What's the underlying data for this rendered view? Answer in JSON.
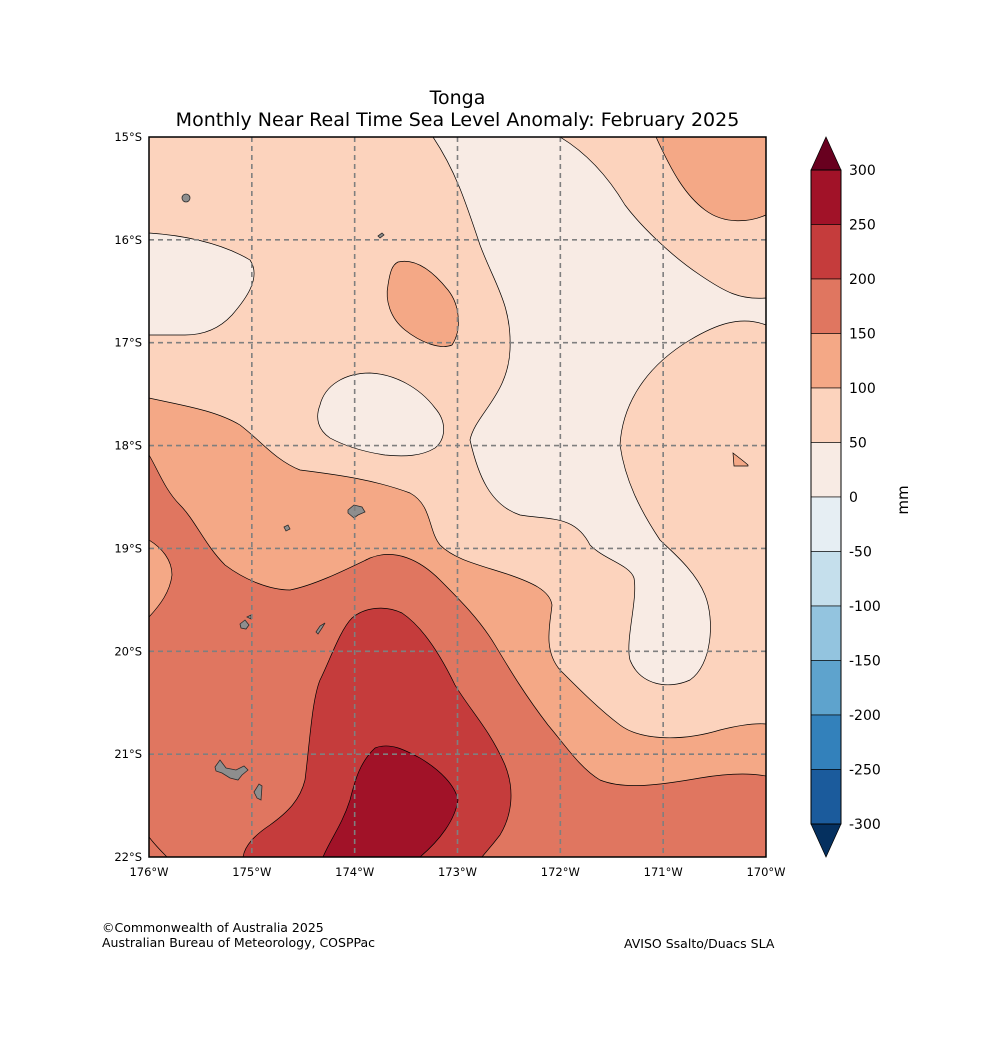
{
  "title": {
    "location": "Tonga",
    "subtitle": "Monthly Near Real Time Sea Level Anomaly: February 2025"
  },
  "axes": {
    "lat_labels": [
      "15°S",
      "16°S",
      "17°S",
      "18°S",
      "19°S",
      "20°S",
      "21°S",
      "22°S"
    ],
    "lon_labels": [
      "176°W",
      "175°W",
      "174°W",
      "173°W",
      "172°W",
      "171°W",
      "170°W"
    ],
    "lat_range": [
      -22,
      -15
    ],
    "lon_range": [
      -176,
      -170
    ]
  },
  "colorbar": {
    "label": "mm",
    "tick_labels": [
      "300",
      "250",
      "200",
      "150",
      "100",
      "50",
      "0",
      "-50",
      "-100",
      "-150",
      "-200",
      "-250",
      "-300"
    ],
    "levels": [
      300,
      250,
      200,
      150,
      100,
      50,
      0,
      -50,
      -100,
      -150,
      -200,
      -250,
      -300
    ],
    "colors": [
      "#a11228",
      "#c53c3c",
      "#e07660",
      "#f4a886",
      "#fcd3bd",
      "#f8ebe4",
      "#e6eef3",
      "#c5dfec",
      "#93c4df",
      "#5ea3cd",
      "#3381bb",
      "#1b5b9c"
    ],
    "over_color": "#68001f",
    "under_color": "#05305f"
  },
  "map_colors": {
    "band_0_50": "#f8ebe4",
    "band_50_100": "#fcd3bd",
    "band_100_150": "#f4a886",
    "band_150_200": "#e07660",
    "band_200_250": "#c53c3c",
    "band_250_300": "#a11228",
    "land": "#8e8e8e",
    "grid": "#7f7f7f"
  },
  "footer": {
    "copyright": "©Commonwealth of Australia 2025",
    "agency": "Australian Bureau of Meteorology, COSPPac",
    "source": "AVISO Ssalto/Duacs SLA"
  }
}
